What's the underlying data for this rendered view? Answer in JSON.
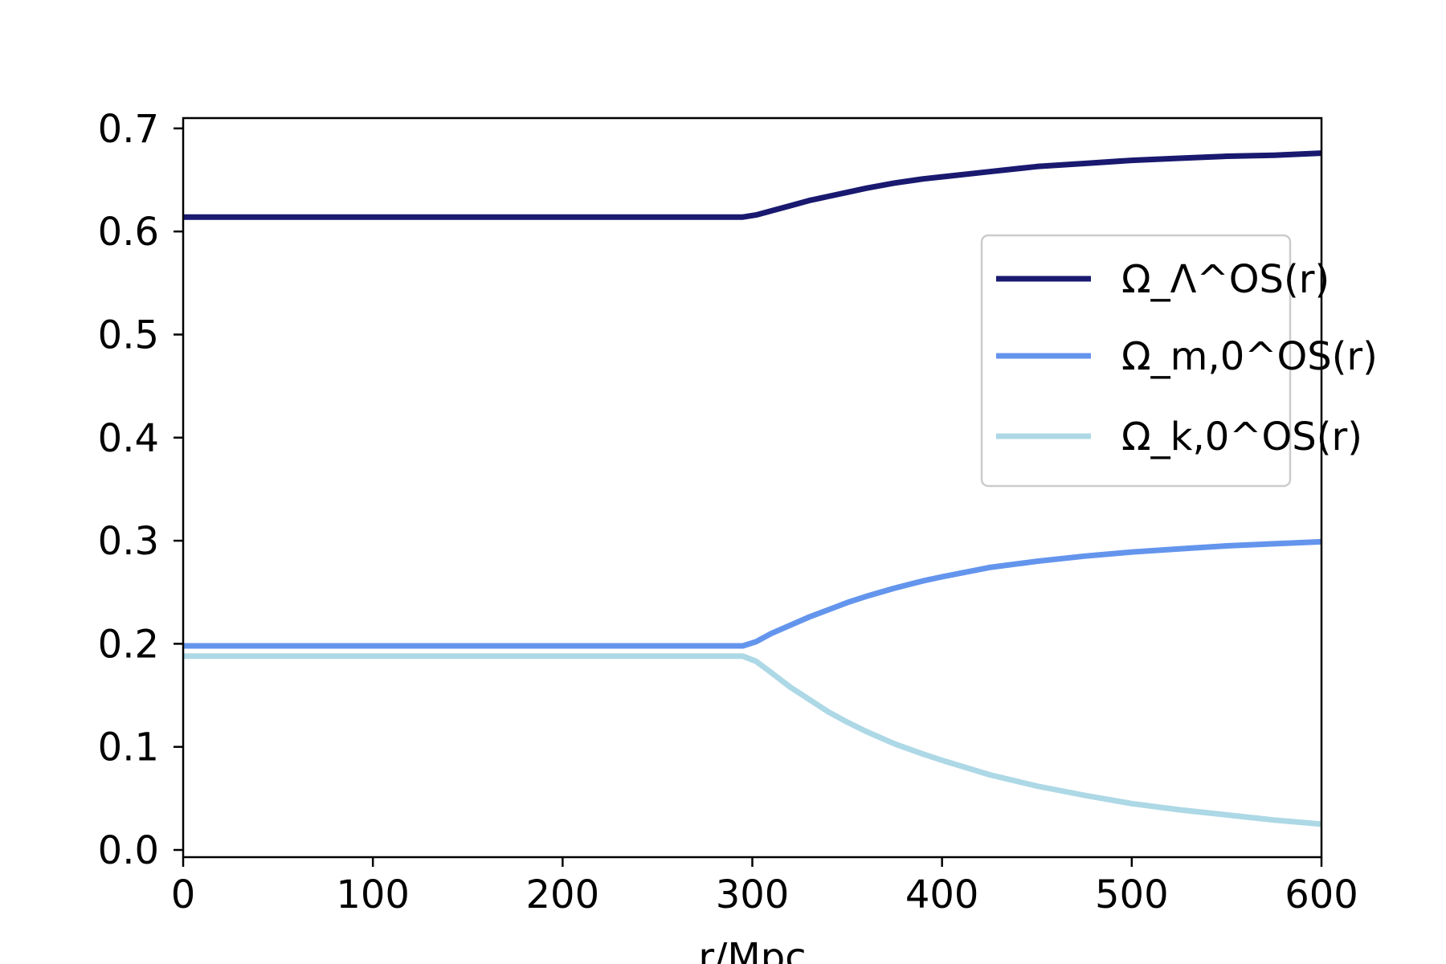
{
  "chart_data": {
    "type": "line",
    "title": "",
    "xlabel": "r/Mpc",
    "ylabel": "",
    "xlim": [
      0,
      600
    ],
    "ylim": [
      -0.007,
      0.71
    ],
    "xticks": [
      0,
      100,
      200,
      300,
      400,
      500,
      600
    ],
    "xtick_labels": [
      "0",
      "100",
      "200",
      "300",
      "400",
      "500",
      "600"
    ],
    "yticks": [
      0.0,
      0.1,
      0.2,
      0.3,
      0.4,
      0.5,
      0.6,
      0.7
    ],
    "ytick_labels": [
      "0.0",
      "0.1",
      "0.2",
      "0.3",
      "0.4",
      "0.5",
      "0.6",
      "0.7"
    ],
    "grid": false,
    "legend_position": "upper right",
    "series": [
      {
        "name": "Ω_Λ^OS(r)",
        "color": "#191970",
        "x": [
          0,
          100,
          200,
          295,
          302,
          310,
          320,
          330,
          340,
          350,
          360,
          375,
          390,
          400,
          425,
          450,
          475,
          500,
          525,
          550,
          575,
          600
        ],
        "y": [
          0.614,
          0.614,
          0.614,
          0.614,
          0.616,
          0.62,
          0.625,
          0.63,
          0.634,
          0.638,
          0.642,
          0.647,
          0.651,
          0.653,
          0.658,
          0.663,
          0.666,
          0.669,
          0.671,
          0.673,
          0.674,
          0.676
        ]
      },
      {
        "name": "Ω_m,0^OS(r)",
        "color": "#6495ED",
        "x": [
          0,
          100,
          200,
          295,
          302,
          310,
          320,
          330,
          340,
          350,
          360,
          375,
          390,
          400,
          425,
          450,
          475,
          500,
          525,
          550,
          575,
          600
        ],
        "y": [
          0.198,
          0.198,
          0.198,
          0.198,
          0.202,
          0.21,
          0.218,
          0.226,
          0.233,
          0.24,
          0.246,
          0.254,
          0.261,
          0.265,
          0.274,
          0.28,
          0.285,
          0.289,
          0.292,
          0.295,
          0.297,
          0.299
        ]
      },
      {
        "name": "Ω_k,0^OS(r)",
        "color": "#ADD8E6",
        "x": [
          0,
          100,
          200,
          295,
          302,
          310,
          320,
          330,
          340,
          350,
          360,
          375,
          390,
          400,
          425,
          450,
          475,
          500,
          525,
          550,
          575,
          600
        ],
        "y": [
          0.188,
          0.188,
          0.188,
          0.188,
          0.183,
          0.172,
          0.158,
          0.146,
          0.134,
          0.124,
          0.115,
          0.103,
          0.093,
          0.087,
          0.073,
          0.062,
          0.053,
          0.045,
          0.039,
          0.034,
          0.029,
          0.025
        ]
      }
    ]
  }
}
